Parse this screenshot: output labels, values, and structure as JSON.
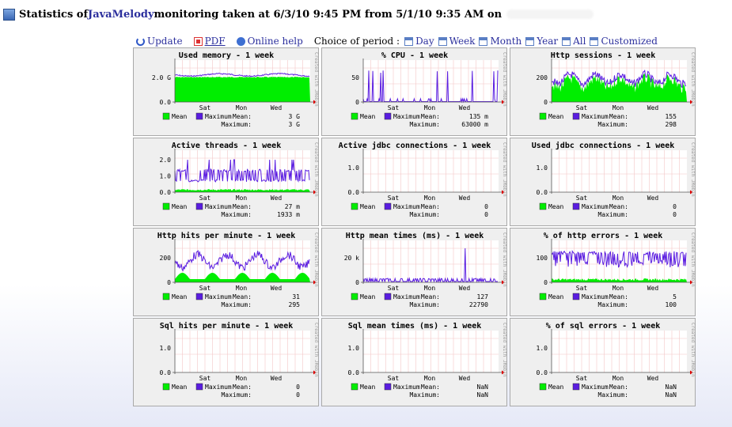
{
  "header": {
    "prefix": "Statistics of ",
    "brand": "JavaMelody",
    "suffix": " monitoring taken at 6/3/10 9:45 PM from 5/1/10 9:35 AM on"
  },
  "menu": {
    "update": "Update",
    "pdf": "PDF",
    "online_help": "Online help",
    "choice_label": "Choice of period :",
    "periods": [
      "Day",
      "Week",
      "Month",
      "Year",
      "All",
      "Customized"
    ]
  },
  "common": {
    "legend_mean": "Mean",
    "legend_max": "Maximum",
    "mean_label": "Mean:",
    "max_label": "Maximum:",
    "x_labels": [
      "Sat",
      "Mon",
      "Wed"
    ],
    "watermark": "Created with JRobin",
    "series_colors": {
      "mean": "#00ee00",
      "maximum": "#5a1ce0"
    }
  },
  "graphs": [
    {
      "title": "Used memory - 1 week",
      "y_labels": [
        "0.0",
        "2.0 G"
      ],
      "mean": "3 G",
      "maximum": "3 G",
      "pattern": "memory"
    },
    {
      "title": "% CPU - 1 week",
      "y_labels": [
        "0",
        "50"
      ],
      "mean": "135 m",
      "maximum": "63000 m",
      "pattern": "cpu"
    },
    {
      "title": "Http sessions - 1 week",
      "y_labels": [
        "0",
        "200"
      ],
      "mean": "155",
      "maximum": "298",
      "pattern": "sessions"
    },
    {
      "title": "Active threads - 1 week",
      "y_labels": [
        "0.0",
        "1.0",
        "2.0"
      ],
      "mean": "27 m",
      "maximum": "1933 m",
      "pattern": "threads"
    },
    {
      "title": "Active jdbc connections - 1 week",
      "y_labels": [
        "0.0",
        "1.0"
      ],
      "mean": "0",
      "maximum": "0",
      "pattern": "empty"
    },
    {
      "title": "Used jdbc connections - 1 week",
      "y_labels": [
        "0.0",
        "1.0"
      ],
      "mean": "0",
      "maximum": "0",
      "pattern": "empty"
    },
    {
      "title": "Http hits per minute - 1 week",
      "y_labels": [
        "0",
        "200"
      ],
      "mean": "31",
      "maximum": "295",
      "pattern": "hits"
    },
    {
      "title": "Http mean times (ms) - 1 week",
      "y_labels": [
        "0",
        "20 k"
      ],
      "mean": "127",
      "maximum": "22790",
      "pattern": "times"
    },
    {
      "title": "% of http errors - 1 week",
      "y_labels": [
        "0",
        "100"
      ],
      "mean": "5",
      "maximum": "100",
      "pattern": "errors"
    },
    {
      "title": "Sql hits per minute - 1 week",
      "y_labels": [
        "0.0",
        "1.0"
      ],
      "mean": "0",
      "maximum": "0",
      "pattern": "empty"
    },
    {
      "title": "Sql mean times (ms) - 1 week",
      "y_labels": [
        "0.0",
        "1.0"
      ],
      "mean": "NaN",
      "maximum": "NaN",
      "pattern": "empty"
    },
    {
      "title": "% of sql errors - 1 week",
      "y_labels": [
        "0.0",
        "1.0"
      ],
      "mean": "NaN",
      "maximum": "NaN",
      "pattern": "empty"
    }
  ]
}
